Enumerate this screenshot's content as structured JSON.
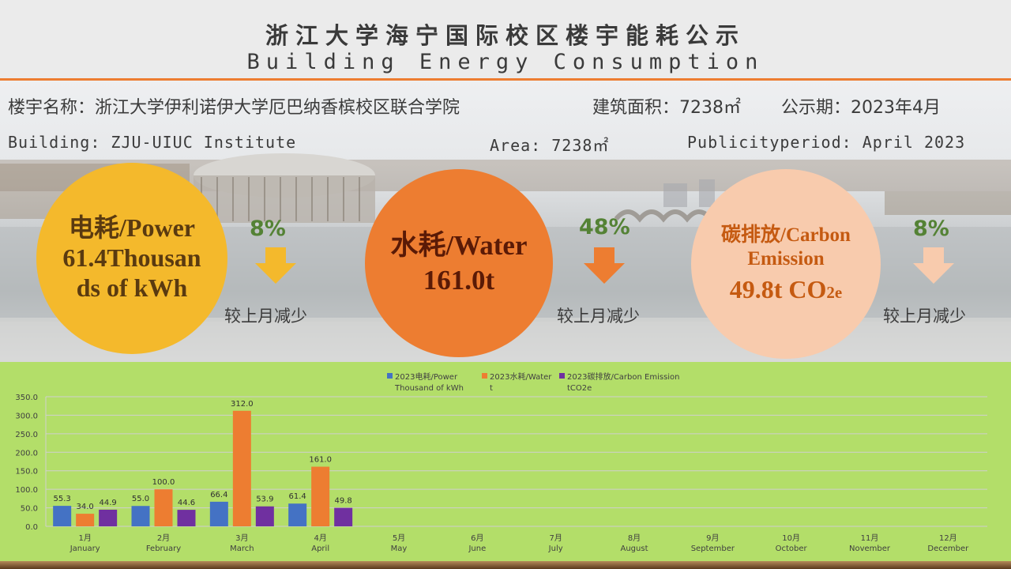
{
  "header": {
    "title_cn": "浙江大学海宁国际校区楼宇能耗公示",
    "title_en": "Building Energy Consumption"
  },
  "info": {
    "building_cn": "楼宇名称：浙江大学伊利诺伊大学厄巴纳香槟校区联合学院",
    "area_cn": "建筑面积：7238㎡",
    "period_cn": "公示期：2023年4月",
    "building_en": "Building: ZJU-UIUC Institute",
    "area_en": "Area: 7238㎡",
    "period_en": "Publicityperiod: April 2023"
  },
  "metrics": [
    {
      "line1": "电耗/Power",
      "line2": "61.4Thousan",
      "line3": "ds of kWh",
      "pct": "8%",
      "desc": "较上月减少",
      "color": "#f4b92c",
      "arrow_color": "#f4b92c"
    },
    {
      "line1": "水耗/Water",
      "line2": "161.0t",
      "pct": "48%",
      "desc": "较上月减少",
      "color": "#ed7d31",
      "arrow_color": "#ed7d31"
    },
    {
      "line1": "碳排放/Carbon",
      "line2": "Emission",
      "line3": "49.8t CO",
      "line3_sub": "2e",
      "pct": "8%",
      "desc": "较上月减少",
      "color": "#f8cbad",
      "arrow_color": "#f8cbad"
    }
  ],
  "colors": {
    "power": "#4472c4",
    "water": "#ed7d31",
    "carbon": "#7030a0",
    "chart_bg": "#b3de69",
    "accent": "#ed7d31"
  },
  "chart_data": {
    "type": "bar",
    "categories_cn": [
      "1月",
      "2月",
      "3月",
      "4月",
      "5月",
      "6月",
      "7月",
      "8月",
      "9月",
      "10月",
      "11月",
      "12月"
    ],
    "categories": [
      "January",
      "February",
      "March",
      "April",
      "May",
      "June",
      "July",
      "August",
      "September",
      "October",
      "November",
      "December"
    ],
    "series": [
      {
        "name": "2023电耗/Power Thousand of kWh",
        "legend_lines": [
          "2023电耗/Power",
          "Thousand of kWh"
        ],
        "color": "#4472c4",
        "values": [
          55.3,
          55.0,
          66.4,
          61.4,
          null,
          null,
          null,
          null,
          null,
          null,
          null,
          null
        ]
      },
      {
        "name": "2023水耗/Water t",
        "legend_lines": [
          "2023水耗/Water",
          "t"
        ],
        "color": "#ed7d31",
        "values": [
          34.0,
          100.0,
          312.0,
          161.0,
          null,
          null,
          null,
          null,
          null,
          null,
          null,
          null
        ]
      },
      {
        "name": "2023碳排放/Carbon Emission tCO2e",
        "legend_lines": [
          "2023碳排放/Carbon Emission",
          "tCO2e"
        ],
        "color": "#7030a0",
        "values": [
          44.9,
          44.6,
          53.9,
          49.8,
          null,
          null,
          null,
          null,
          null,
          null,
          null,
          null
        ]
      }
    ],
    "yticks": [
      "0.0",
      "50.0",
      "100.0",
      "150.0",
      "200.0",
      "250.0",
      "300.0",
      "350.0"
    ],
    "ylim": [
      0,
      350
    ],
    "grid": true,
    "legend": "top"
  }
}
